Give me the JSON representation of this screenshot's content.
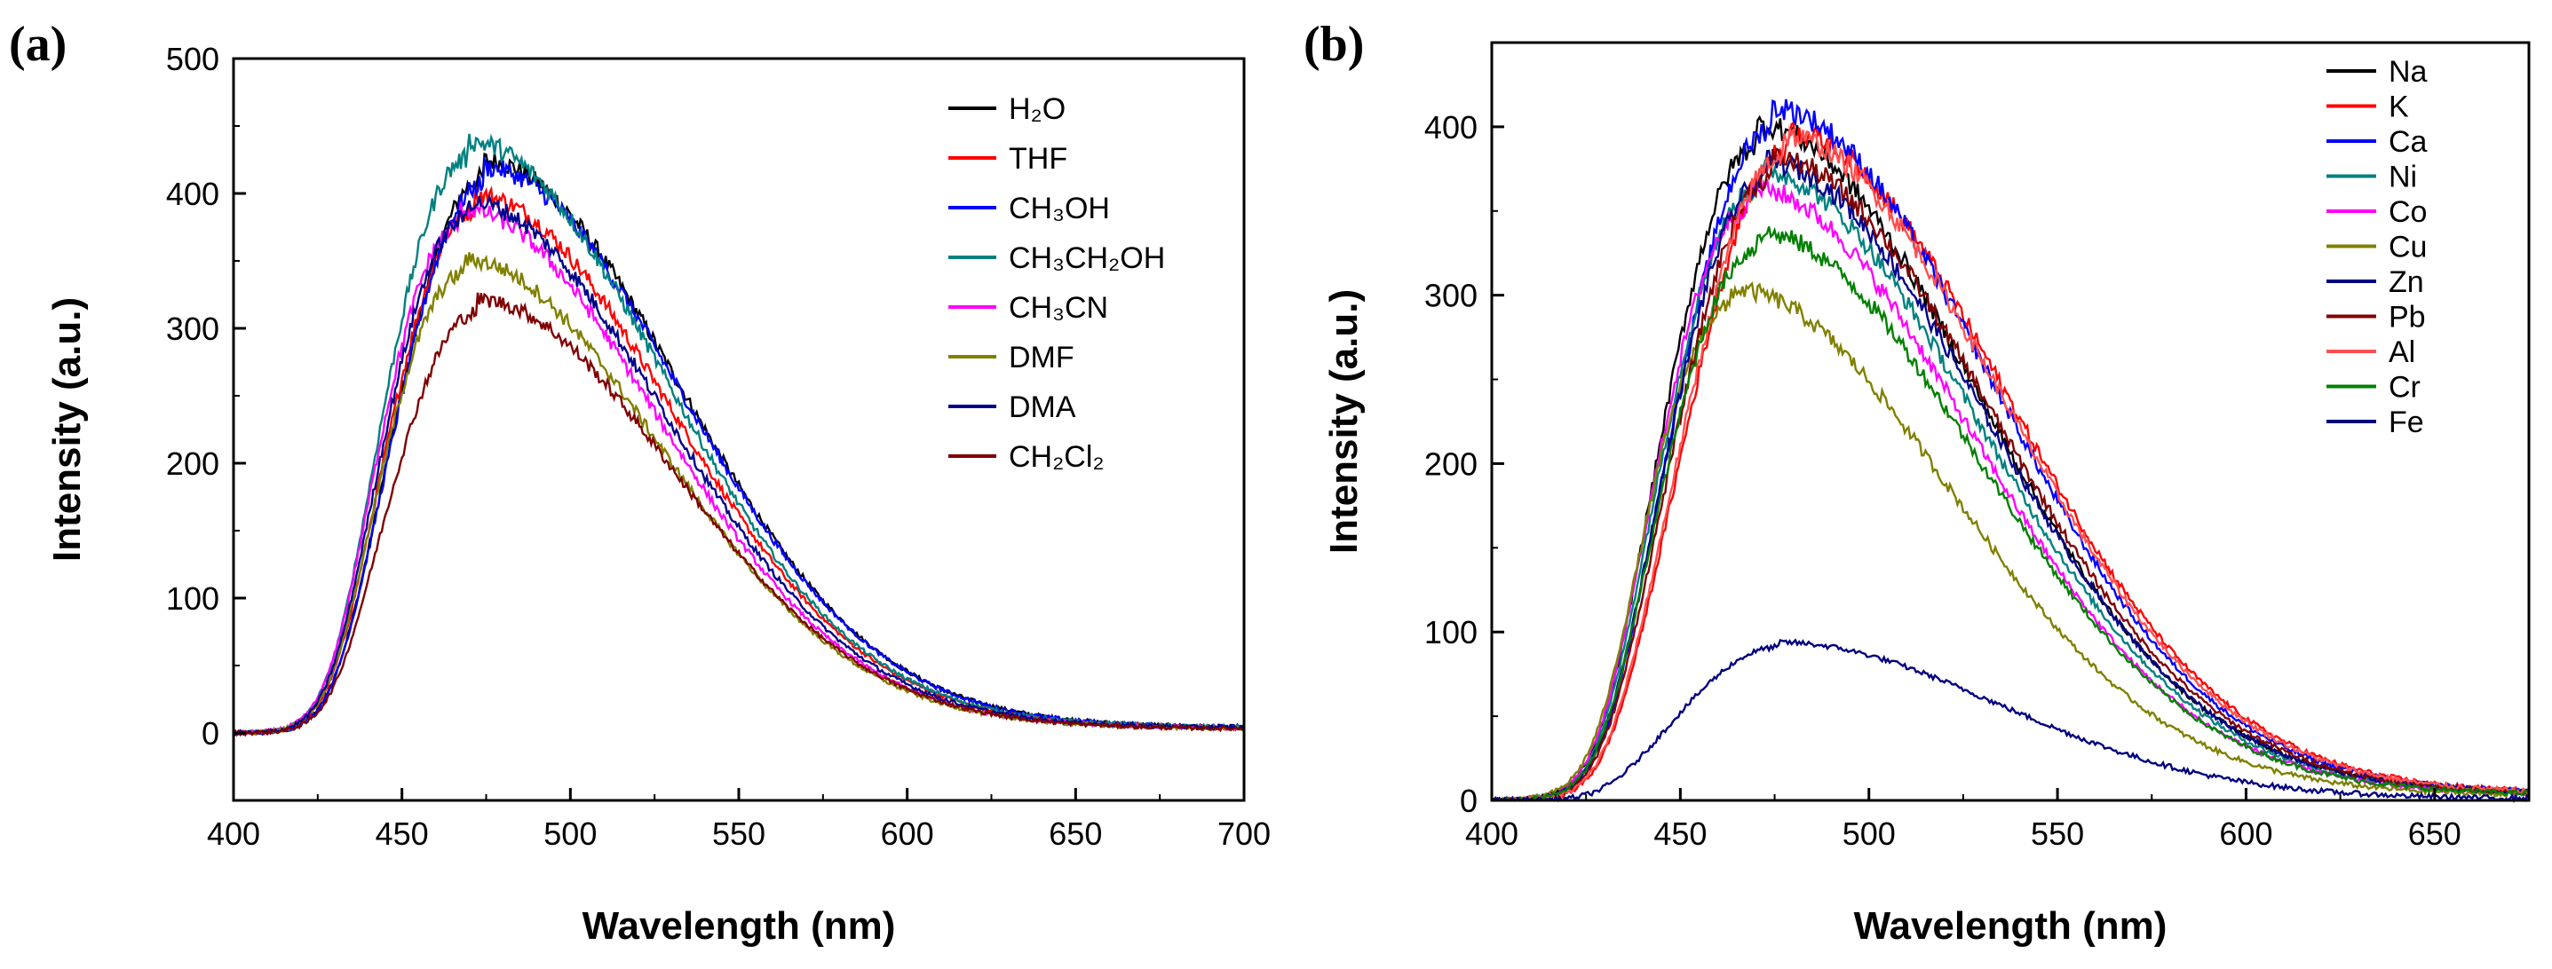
{
  "chart_data": [
    {
      "type": "line",
      "panel_label": "(a)",
      "xlabel": "Wavelength (nm)",
      "ylabel": "Intensity (a.u.)",
      "xlim": [
        400,
        700
      ],
      "ylim": [
        -50,
        500
      ],
      "xticks": [
        400,
        450,
        500,
        550,
        600,
        650,
        700
      ],
      "yticks": [
        0,
        100,
        200,
        300,
        400,
        500
      ],
      "legend_position": "top-right",
      "series": [
        {
          "name": "H2O",
          "legend_label": "H₂O",
          "color": "#000000",
          "peak": 425,
          "peak_x": 474
        },
        {
          "name": "THF",
          "legend_label": "THF",
          "color": "#ff0000",
          "peak": 400,
          "peak_x": 471
        },
        {
          "name": "CH3OH",
          "legend_label": "CH₃OH",
          "color": "#0000ff",
          "peak": 420,
          "peak_x": 474
        },
        {
          "name": "CH3CH2OH",
          "legend_label": "CH₃CH₂OH",
          "color": "#008080",
          "peak": 440,
          "peak_x": 469
        },
        {
          "name": "CH3CN",
          "legend_label": "CH₃CN",
          "color": "#ff00ff",
          "peak": 390,
          "peak_x": 467
        },
        {
          "name": "DMF",
          "legend_label": "DMF",
          "color": "#808000",
          "peak": 352,
          "peak_x": 468
        },
        {
          "name": "DMA",
          "legend_label": "DMA",
          "color": "#00008b",
          "peak": 395,
          "peak_x": 469
        },
        {
          "name": "CH2Cl2",
          "legend_label": "CH₂Cl₂",
          "color": "#800000",
          "peak": 322,
          "peak_x": 472
        }
      ]
    },
    {
      "type": "line",
      "panel_label": "(b)",
      "xlabel": "Wavelength (nm)",
      "ylabel": "Intensity (a.u.)",
      "xlim": [
        400,
        675
      ],
      "ylim": [
        0,
        450
      ],
      "xticks": [
        400,
        450,
        500,
        550,
        600,
        650
      ],
      "yticks": [
        0,
        100,
        200,
        300,
        400
      ],
      "legend_position": "top-right",
      "series": [
        {
          "name": "Na",
          "color": "#000000",
          "peak": 402,
          "peak_x": 470
        },
        {
          "name": "K",
          "color": "#ff0000",
          "peak": 398,
          "peak_x": 478
        },
        {
          "name": "Ca",
          "color": "#0000ff",
          "peak": 412,
          "peak_x": 474
        },
        {
          "name": "Ni",
          "color": "#008080",
          "peak": 375,
          "peak_x": 470
        },
        {
          "name": "Co",
          "color": "#ff00ff",
          "peak": 365,
          "peak_x": 468
        },
        {
          "name": "Cu",
          "color": "#808000",
          "peak": 305,
          "peak_x": 463
        },
        {
          "name": "Zn",
          "color": "#00008b",
          "peak": 380,
          "peak_x": 472
        },
        {
          "name": "Pb",
          "color": "#800000",
          "peak": 382,
          "peak_x": 474
        },
        {
          "name": "Al",
          "color": "#ff5050",
          "peak": 395,
          "peak_x": 477
        },
        {
          "name": "Cr",
          "color": "#008000",
          "peak": 338,
          "peak_x": 470
        },
        {
          "name": "Fe",
          "color": "#000080",
          "peak": 94,
          "peak_x": 476
        }
      ]
    }
  ]
}
